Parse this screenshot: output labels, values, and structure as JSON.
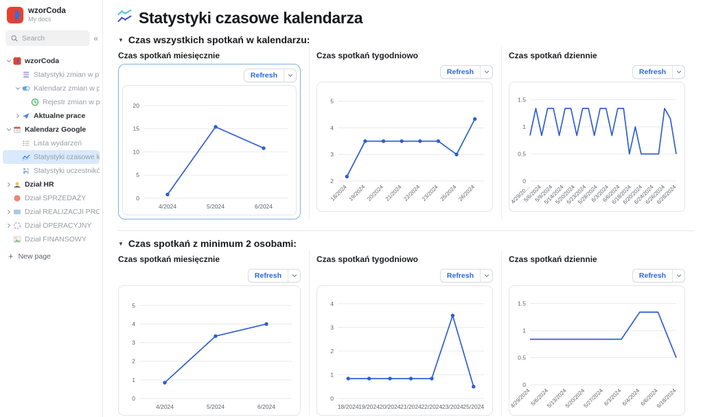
{
  "colors": {
    "line_blue": "#2f5ed2",
    "refresh_text": "#2e68d8",
    "selected_card_border": "#7db1e4",
    "selected_row_bg": "#d8eafb",
    "gridline": "#e9eaec",
    "axis_text": "#5f6368"
  },
  "sidebar": {
    "workspace": {
      "name": "wzorCoda",
      "subtitle": "My docs"
    },
    "search": {
      "placeholder": "Search",
      "collapse_icon": "«"
    },
    "items": [
      {
        "label": "wzorCoda",
        "level": 0,
        "chevron": "down",
        "icon": "logo",
        "emphasis": true
      },
      {
        "label": "Statystyki zmian w pro…",
        "level": 1,
        "chevron": "none",
        "icon": "grid-purple"
      },
      {
        "label": "Kalendarz zmian w pr…",
        "level": 1,
        "chevron": "down",
        "icon": "toggle-blue"
      },
      {
        "label": "Rejestr zmian w pr…",
        "level": 2,
        "chevron": "none",
        "icon": "clock-green"
      },
      {
        "label": "Aktualne prace",
        "level": 1,
        "chevron": "right",
        "icon": "megaphone",
        "emphasis": true
      },
      {
        "label": "Kalendarz Google",
        "level": 0,
        "chevron": "down",
        "icon": "calendar",
        "emphasis": true
      },
      {
        "label": "Lista wydarzeń",
        "level": 1,
        "chevron": "none",
        "icon": "list"
      },
      {
        "label": "Statystyki czasowe kaler",
        "level": 1,
        "chevron": "none",
        "icon": "chart-blue",
        "selected": true
      },
      {
        "label": "Statystyki uczestnikó…",
        "level": 1,
        "chevron": "none",
        "icon": "people-stats"
      },
      {
        "label": "Dział HR",
        "level": 0,
        "chevron": "right",
        "icon": "sunrise",
        "emphasis": true
      },
      {
        "label": "Dział SPRZEDAŻY",
        "level": 0,
        "chevron": "none",
        "icon": "circle-red"
      },
      {
        "label": "Dział REALIZACJI PROJEK…",
        "level": 0,
        "chevron": "right",
        "icon": "rect-blue"
      },
      {
        "label": "Dział OPERACYJNY",
        "level": 0,
        "chevron": "right",
        "icon": "circle-dashed"
      },
      {
        "label": "Dział FINANSOWY",
        "level": 0,
        "chevron": "none",
        "icon": "image-finance"
      }
    ],
    "new_page_label": "New page"
  },
  "page": {
    "title": "Statystyki czasowe kalendarza"
  },
  "sections": [
    {
      "heading": "Czas wszystkich spotkań w kalendarzu:"
    },
    {
      "heading": "Czas spotkań z minimum 2 osobami:"
    }
  ],
  "chart_data": [
    {
      "group": 0,
      "type": "line",
      "title": "Czas spotkań miesięcznie",
      "refresh_label": "Refresh",
      "selected": true,
      "markers": true,
      "rotate_x_labels": false,
      "x": [
        "4/2024",
        "5/2024",
        "6/2024"
      ],
      "values": [
        0.8,
        15.4,
        10.8
      ],
      "y_ticks": [
        0,
        5,
        10,
        15,
        20
      ],
      "ylim": [
        0,
        22.5
      ],
      "xlabel": "",
      "ylabel": "",
      "grid": true,
      "legend": false
    },
    {
      "group": 0,
      "type": "line",
      "title": "Czas spotkań tygodniowo",
      "refresh_label": "Refresh",
      "selected": false,
      "markers": true,
      "rotate_x_labels": true,
      "x": [
        "18/2024",
        "19/2024",
        "20/2024",
        "21/2024",
        "22/2024",
        "23/2024",
        "25/2024",
        "26/2024"
      ],
      "values": [
        2.17,
        3.5,
        3.5,
        3.5,
        3.5,
        3.5,
        3.0,
        4.33
      ],
      "y_ticks": [
        2,
        3,
        4,
        5
      ],
      "ylim": [
        2,
        5.4
      ],
      "xlabel": "",
      "ylabel": "",
      "grid": true,
      "legend": false
    },
    {
      "group": 0,
      "type": "line",
      "title": "Czas spotkań dziennie",
      "refresh_label": "Refresh",
      "selected": false,
      "markers": false,
      "rotate_x_labels": true,
      "x": [
        "4/29/20…",
        "5/6/2024",
        "5/9/2024",
        "5/14/2024",
        "5/20/2024",
        "5/23/2024",
        "5/28/2024",
        "6/3/2024",
        "6/6/2024",
        "6/18/2024",
        "6/20/2024",
        "6/24/2024",
        "6/26/2024",
        "6/28/2024"
      ],
      "values": [
        0.84,
        1.34,
        0.84,
        1.34,
        1.34,
        0.84,
        1.34,
        1.34,
        0.84,
        1.34,
        1.34,
        0.84,
        1.34,
        1.34,
        0.84,
        1.34,
        1.34,
        0.5,
        1.0,
        0.5,
        0.5,
        0.5,
        0.5,
        1.34,
        1.15,
        0.5
      ],
      "y_ticks": [
        0,
        0.5,
        1,
        1.5
      ],
      "ylim": [
        0,
        1.67
      ],
      "xlabel": "",
      "ylabel": "",
      "grid": true,
      "legend": false
    },
    {
      "group": 1,
      "type": "line",
      "title": "Czas spotkań miesięcznie",
      "refresh_label": "Refresh",
      "selected": false,
      "markers": true,
      "rotate_x_labels": false,
      "x": [
        "4/2024",
        "5/2024",
        "6/2024"
      ],
      "values": [
        0.85,
        3.35,
        4.0
      ],
      "y_ticks": [
        0,
        1,
        2,
        3,
        4,
        5
      ],
      "ylim": [
        0,
        5.6
      ],
      "xlabel": "",
      "ylabel": "",
      "grid": true,
      "legend": false
    },
    {
      "group": 1,
      "type": "line",
      "title": "Czas spotkań tygodniowo",
      "refresh_label": "Refresh",
      "selected": false,
      "markers": true,
      "rotate_x_labels": false,
      "x": [
        "18/2024",
        "19/2024",
        "20/2024",
        "21/2024",
        "22/2024",
        "23/2024",
        "25/2024"
      ],
      "values": [
        0.84,
        0.84,
        0.84,
        0.84,
        0.84,
        3.5,
        0.5
      ],
      "y_ticks": [
        0,
        1,
        2,
        3,
        4
      ],
      "ylim": [
        0,
        4.4
      ],
      "xlabel": "",
      "ylabel": "",
      "grid": true,
      "legend": false
    },
    {
      "group": 1,
      "type": "line",
      "title": "Czas spotkań dziennie",
      "refresh_label": "Refresh",
      "selected": false,
      "markers": false,
      "rotate_x_labels": true,
      "x": [
        "4/29/2024",
        "5/6/2024",
        "5/13/2024",
        "5/20/2024",
        "5/27/2024",
        "6/3/2024",
        "6/4/2024",
        "6/6/2024",
        "6/18/2024"
      ],
      "values": [
        0.84,
        0.84,
        0.84,
        0.84,
        0.84,
        0.84,
        1.34,
        1.34,
        0.5
      ],
      "y_ticks": [
        0,
        0.5,
        1,
        1.5
      ],
      "ylim": [
        0,
        1.67
      ],
      "xlabel": "",
      "ylabel": "",
      "grid": true,
      "legend": false
    }
  ]
}
